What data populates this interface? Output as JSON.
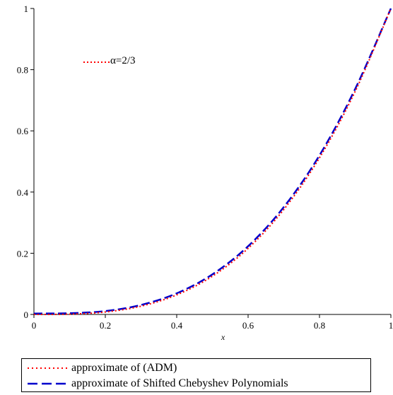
{
  "chart_data": {
    "type": "line",
    "title": "",
    "xlabel": "x",
    "ylabel": "",
    "xlim": [
      0,
      1
    ],
    "ylim": [
      0,
      1
    ],
    "x_ticks": [
      "0",
      "0.2",
      "0.4",
      "0.6",
      "0.8",
      "1"
    ],
    "y_ticks": [
      "0",
      "0.2",
      "0.4",
      "0.6",
      "0.8",
      "1"
    ],
    "annotation": "α=2/3",
    "grid": false,
    "legend_position": "bottom",
    "series": [
      {
        "name": "approximate of (ADM)",
        "color": "#ff0000",
        "style": "dotted",
        "x": [
          0,
          0.1,
          0.2,
          0.3,
          0.4,
          0.5,
          0.6,
          0.7,
          0.8,
          0.9,
          1.0
        ],
        "y": [
          0,
          0.001,
          0.008,
          0.027,
          0.064,
          0.125,
          0.216,
          0.343,
          0.512,
          0.729,
          1.0
        ]
      },
      {
        "name": "approximate of Shifted Chebyshev Polynomials",
        "color": "#0000cc",
        "style": "dashed",
        "x": [
          0,
          0.1,
          0.2,
          0.3,
          0.4,
          0.5,
          0.6,
          0.7,
          0.8,
          0.9,
          1.0
        ],
        "y": [
          0.003,
          0.004,
          0.011,
          0.031,
          0.069,
          0.131,
          0.223,
          0.351,
          0.52,
          0.737,
          1.0
        ]
      }
    ]
  },
  "colors": {
    "axis": "#000000",
    "adm": "#ff0000",
    "chebyshev": "#0000cc"
  }
}
